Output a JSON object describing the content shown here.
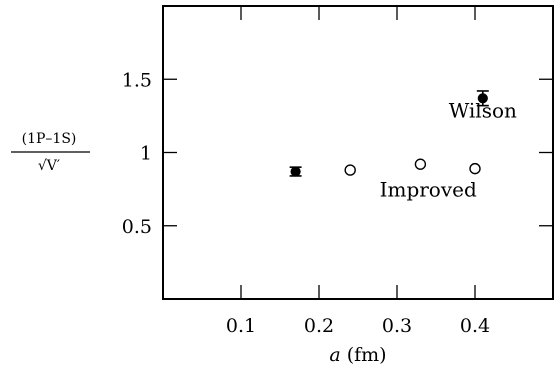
{
  "chart_data": {
    "type": "scatter",
    "xlabel_var": "a",
    "xlabel_unit": "(fm)",
    "ylabel_numerator": "(1P–1S)",
    "ylabel_denominator": "√V′",
    "xlim": [
      0.0,
      0.5
    ],
    "ylim": [
      0.0,
      2.0
    ],
    "xticks": [
      0.1,
      0.2,
      0.3,
      0.4
    ],
    "xtick_labels": [
      "0.1",
      "0.2",
      "0.3",
      "0.4"
    ],
    "yticks": [
      0.5,
      1.0,
      1.5
    ],
    "ytick_labels": [
      "0.5",
      "1",
      "1.5"
    ],
    "grid": false,
    "series": [
      {
        "name": "Wilson",
        "marker": "filled-circle",
        "error_bars": true,
        "points": [
          {
            "x": 0.17,
            "y": 0.87,
            "err": 0.03
          },
          {
            "x": 0.41,
            "y": 1.37,
            "err": 0.05
          }
        ]
      },
      {
        "name": "Improved",
        "marker": "open-circle",
        "error_bars": false,
        "points": [
          {
            "x": 0.24,
            "y": 0.88
          },
          {
            "x": 0.33,
            "y": 0.92
          },
          {
            "x": 0.4,
            "y": 0.89
          }
        ]
      }
    ],
    "annotations": [
      {
        "text": "Wilson",
        "x": 0.41,
        "y": 1.24
      },
      {
        "text": "Improved",
        "x": 0.34,
        "y": 0.7
      }
    ]
  }
}
